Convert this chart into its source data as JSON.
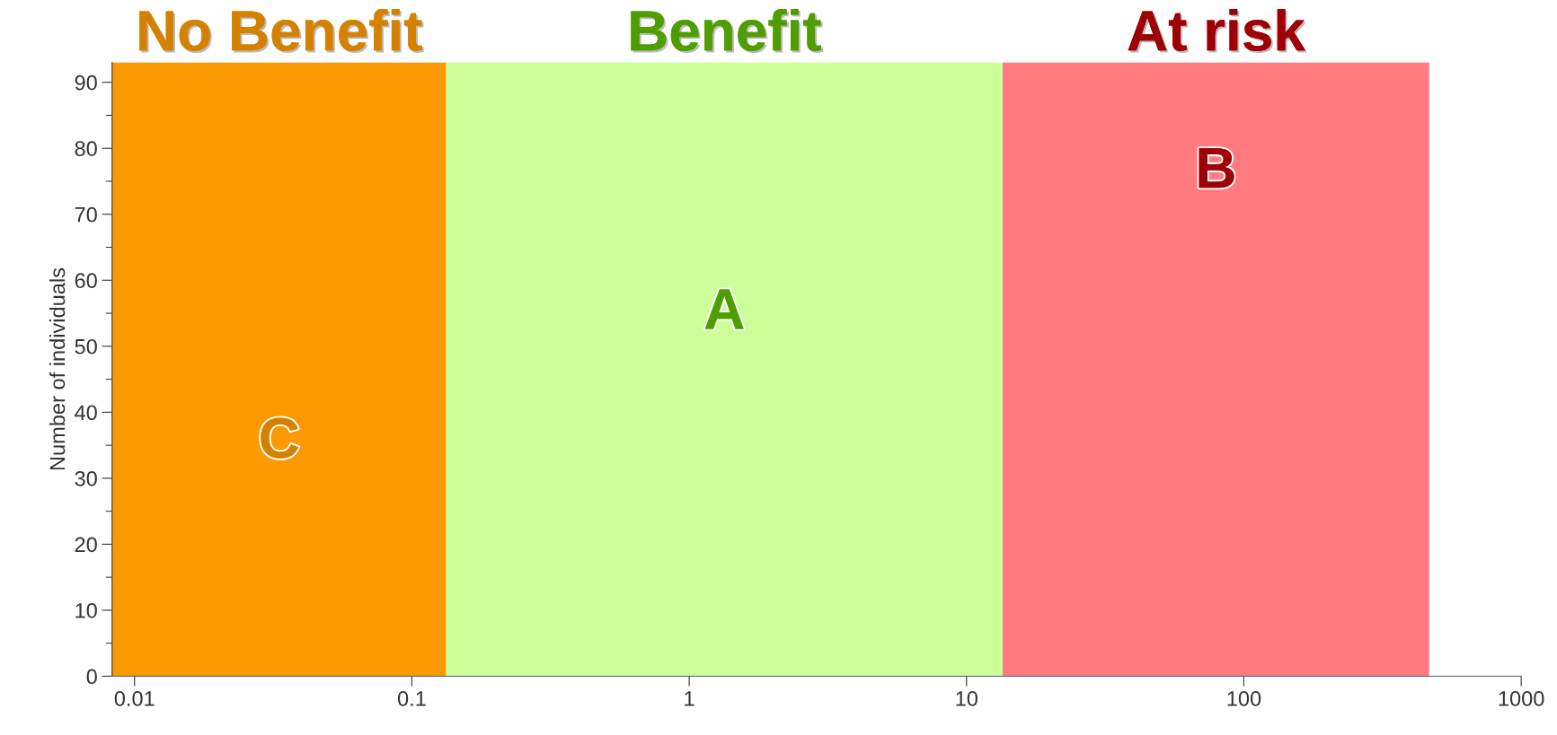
{
  "chart_data": {
    "type": "area",
    "ylabel": "Number of individuals",
    "log": "x",
    "xlim": [
      0.0083,
      1000
    ],
    "xticks": [
      {
        "value": 0.01,
        "label": "0.01"
      },
      {
        "value": 0.1,
        "label": "0.1"
      },
      1,
      10,
      100,
      1000
    ],
    "ylim": [
      0,
      93
    ],
    "yticks": [
      0,
      10,
      20,
      30,
      40,
      50,
      60,
      70,
      80,
      90
    ],
    "grid": false,
    "bands": [
      {
        "axis": "x",
        "from": 0.0083,
        "to": 0.133,
        "label": "No Benefit",
        "color": "#fb9902"
      },
      {
        "axis": "x",
        "from": 0.133,
        "to": 13.5,
        "label": "Benefit",
        "color": "#ccff99"
      },
      {
        "axis": "x",
        "from": 13.5,
        "to": 466,
        "label": "At risk",
        "color": "#ff7b7f"
      }
    ],
    "annotations": [
      "C",
      "A",
      "B"
    ]
  }
}
